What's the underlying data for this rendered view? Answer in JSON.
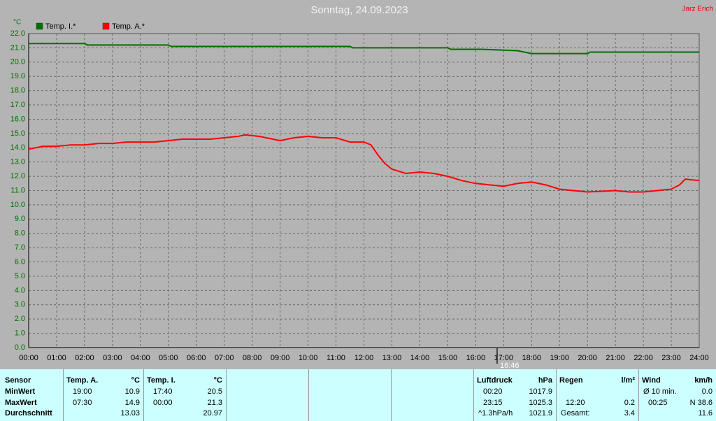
{
  "chart_data": {
    "type": "line",
    "title": "Sonntag, 24.09.2023",
    "author": "Jarz Erich",
    "ylabel": "°C",
    "grid": true,
    "xlim": [
      0,
      24
    ],
    "xticks": [
      {
        "value": 0,
        "label": "00:00"
      },
      {
        "value": 1,
        "label": "01:00"
      },
      {
        "value": 2,
        "label": "02:00"
      },
      {
        "value": 3,
        "label": "03:00"
      },
      {
        "value": 4,
        "label": "04:00"
      },
      {
        "value": 5,
        "label": "05:00"
      },
      {
        "value": 6,
        "label": "06:00"
      },
      {
        "value": 7,
        "label": "07:00"
      },
      {
        "value": 8,
        "label": "08:00"
      },
      {
        "value": 9,
        "label": "09:00"
      },
      {
        "value": 10,
        "label": "10:00"
      },
      {
        "value": 11,
        "label": "11:00"
      },
      {
        "value": 12,
        "label": "12:00"
      },
      {
        "value": 13,
        "label": "13:00"
      },
      {
        "value": 14,
        "label": "14:00"
      },
      {
        "value": 15,
        "label": "15:00"
      },
      {
        "value": 16,
        "label": "16:00"
      },
      {
        "value": 17,
        "label": "17:00"
      },
      {
        "value": 18,
        "label": "18:00"
      },
      {
        "value": 19,
        "label": "19:00"
      },
      {
        "value": 20,
        "label": "20:00"
      },
      {
        "value": 21,
        "label": "21:00"
      },
      {
        "value": 22,
        "label": "22:00"
      },
      {
        "value": 23,
        "label": "23:00"
      },
      {
        "value": 24,
        "label": "24:00"
      }
    ],
    "ylim": [
      0,
      22
    ],
    "yticks": [
      {
        "value": 0,
        "label": "0.0"
      },
      {
        "value": 1,
        "label": "1.0"
      },
      {
        "value": 2,
        "label": "2.0"
      },
      {
        "value": 3,
        "label": "3.0"
      },
      {
        "value": 4,
        "label": "4.0"
      },
      {
        "value": 5,
        "label": "5.0"
      },
      {
        "value": 6,
        "label": "6.0"
      },
      {
        "value": 7,
        "label": "7.0"
      },
      {
        "value": 8,
        "label": "8.0"
      },
      {
        "value": 9,
        "label": "9.0"
      },
      {
        "value": 10,
        "label": "10.0"
      },
      {
        "value": 11,
        "label": "11.0"
      },
      {
        "value": 12,
        "label": "12.0"
      },
      {
        "value": 13,
        "label": "13.0"
      },
      {
        "value": 14,
        "label": "14.0"
      },
      {
        "value": 15,
        "label": "15.0"
      },
      {
        "value": 16,
        "label": "16.0"
      },
      {
        "value": 17,
        "label": "17.0"
      },
      {
        "value": 18,
        "label": "18.0"
      },
      {
        "value": 19,
        "label": "19.0"
      },
      {
        "value": 20,
        "label": "20.0"
      },
      {
        "value": 21,
        "label": "21.0"
      },
      {
        "value": 22,
        "label": "22.0"
      }
    ],
    "marker": {
      "x": 16.7667,
      "label": "16:46"
    },
    "series": [
      {
        "name": "Temp. I.*",
        "color": "#007000",
        "x": [
          0,
          2,
          2.1,
          5,
          5.1,
          9,
          9.1,
          11.5,
          11.6,
          15,
          15.1,
          16.2,
          17.5,
          18,
          20,
          20.1,
          24
        ],
        "values": [
          21.3,
          21.3,
          21.2,
          21.2,
          21.1,
          21.1,
          21.1,
          21.1,
          21.0,
          21.0,
          20.9,
          20.9,
          20.8,
          20.6,
          20.6,
          20.7,
          20.7
        ]
      },
      {
        "name": "Temp. A.*",
        "color": "#ff0000",
        "x": [
          0,
          0.5,
          1,
          1.5,
          2,
          2.5,
          3,
          3.5,
          4,
          4.5,
          5,
          5.5,
          6,
          6.5,
          7,
          7.5,
          7.75,
          8.25,
          8.5,
          9,
          9.5,
          10,
          10.5,
          11,
          11.5,
          12,
          12.25,
          12.5,
          12.75,
          13,
          13.5,
          14,
          14.5,
          15,
          15.5,
          16,
          16.5,
          17,
          17.5,
          18,
          18.5,
          19,
          19.5,
          20,
          21,
          21.5,
          22,
          22.5,
          23,
          23.3,
          23.5,
          24
        ],
        "values": [
          13.9,
          14.1,
          14.1,
          14.2,
          14.2,
          14.3,
          14.3,
          14.4,
          14.4,
          14.4,
          14.5,
          14.6,
          14.6,
          14.6,
          14.7,
          14.8,
          14.9,
          14.8,
          14.7,
          14.5,
          14.7,
          14.8,
          14.7,
          14.7,
          14.4,
          14.4,
          14.2,
          13.5,
          12.9,
          12.5,
          12.2,
          12.3,
          12.2,
          12.0,
          11.7,
          11.5,
          11.4,
          11.3,
          11.5,
          11.6,
          11.4,
          11.1,
          11.0,
          10.9,
          11.0,
          10.9,
          10.9,
          11.0,
          11.1,
          11.4,
          11.8,
          11.7
        ]
      }
    ]
  },
  "stats": {
    "row_labels": [
      "Sensor",
      "MinWert",
      "MaxWert",
      "Durchschnitt"
    ],
    "columns": [
      {
        "name": "Temp. A.",
        "unit": "°C",
        "min": {
          "time": "19:00",
          "value": "10.9"
        },
        "max": {
          "time": "07:30",
          "value": "14.9"
        },
        "avg": {
          "value": "13.03"
        }
      },
      {
        "name": "Temp. I.",
        "unit": "°C",
        "min": {
          "time": "17:40",
          "value": "20.5"
        },
        "max": {
          "time": "00:00",
          "value": "21.3"
        },
        "avg": {
          "value": "20.97"
        }
      },
      {
        "name": "Luftdruck",
        "unit": "hPa",
        "min": {
          "time": "00:20",
          "value": "1017.9"
        },
        "max": {
          "time": "23:15",
          "value": "1025.3"
        },
        "avg": {
          "time": "^1.3hPa/h",
          "value": "1021.9"
        }
      },
      {
        "name": "Regen",
        "unit": "l/m²",
        "max": {
          "time": "12:20",
          "value": "0.2"
        },
        "avg": {
          "time": "Gesamt:",
          "value": "3.4"
        }
      },
      {
        "name": "Wind",
        "unit": "km/h",
        "min": {
          "time": "Ø 10 min.",
          "value": "0.0"
        },
        "max": {
          "time": "00:25",
          "value": "N 38.6"
        },
        "avg": {
          "value": "11.6"
        }
      }
    ]
  }
}
